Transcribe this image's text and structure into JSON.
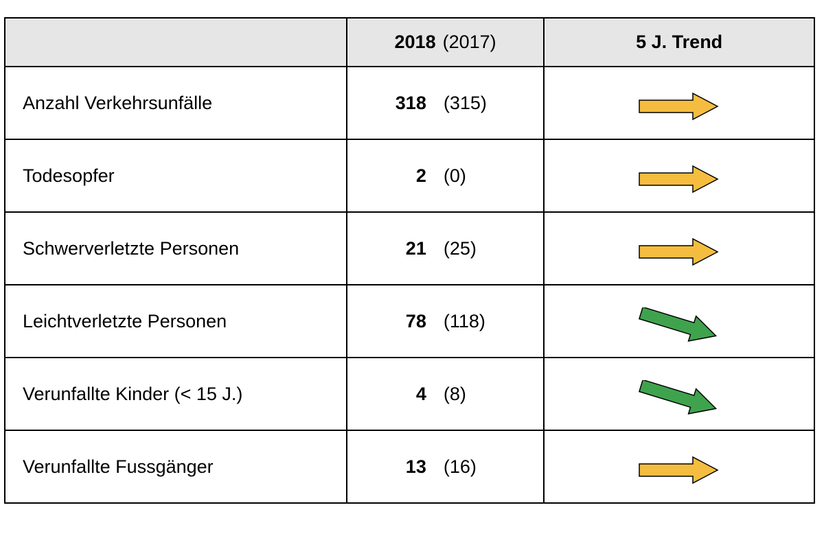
{
  "header": {
    "year_current": "2018",
    "year_previous": "(2017)",
    "trend_label": "5 J. Trend"
  },
  "rows": [
    {
      "label": "Anzahl Verkehrsunfälle",
      "value_2018": "318",
      "value_2017": "(315)",
      "trend": "flat",
      "trend_color": "#f5bd40"
    },
    {
      "label": "Todesopfer",
      "value_2018": "2",
      "value_2017": "(0)",
      "trend": "flat",
      "trend_color": "#f5bd40"
    },
    {
      "label": "Schwerverletzte Personen",
      "value_2018": "21",
      "value_2017": "(25)",
      "trend": "flat",
      "trend_color": "#f5bd40"
    },
    {
      "label": "Leichtverletzte Personen",
      "value_2018": "78",
      "value_2017": "(118)",
      "trend": "down",
      "trend_color": "#3fa34d"
    },
    {
      "label": "Verunfallte Kinder (< 15 J.)",
      "value_2018": "4",
      "value_2017": "(8)",
      "trend": "down",
      "trend_color": "#3fa34d"
    },
    {
      "label": "Verunfallte Fussgänger",
      "value_2018": "13",
      "value_2017": "(16)",
      "trend": "flat",
      "trend_color": "#f5bd40"
    }
  ],
  "colors": {
    "header_bg": "#e6e6e6",
    "border": "#000000",
    "trend_flat": "#f5bd40",
    "trend_down": "#3fa34d"
  }
}
